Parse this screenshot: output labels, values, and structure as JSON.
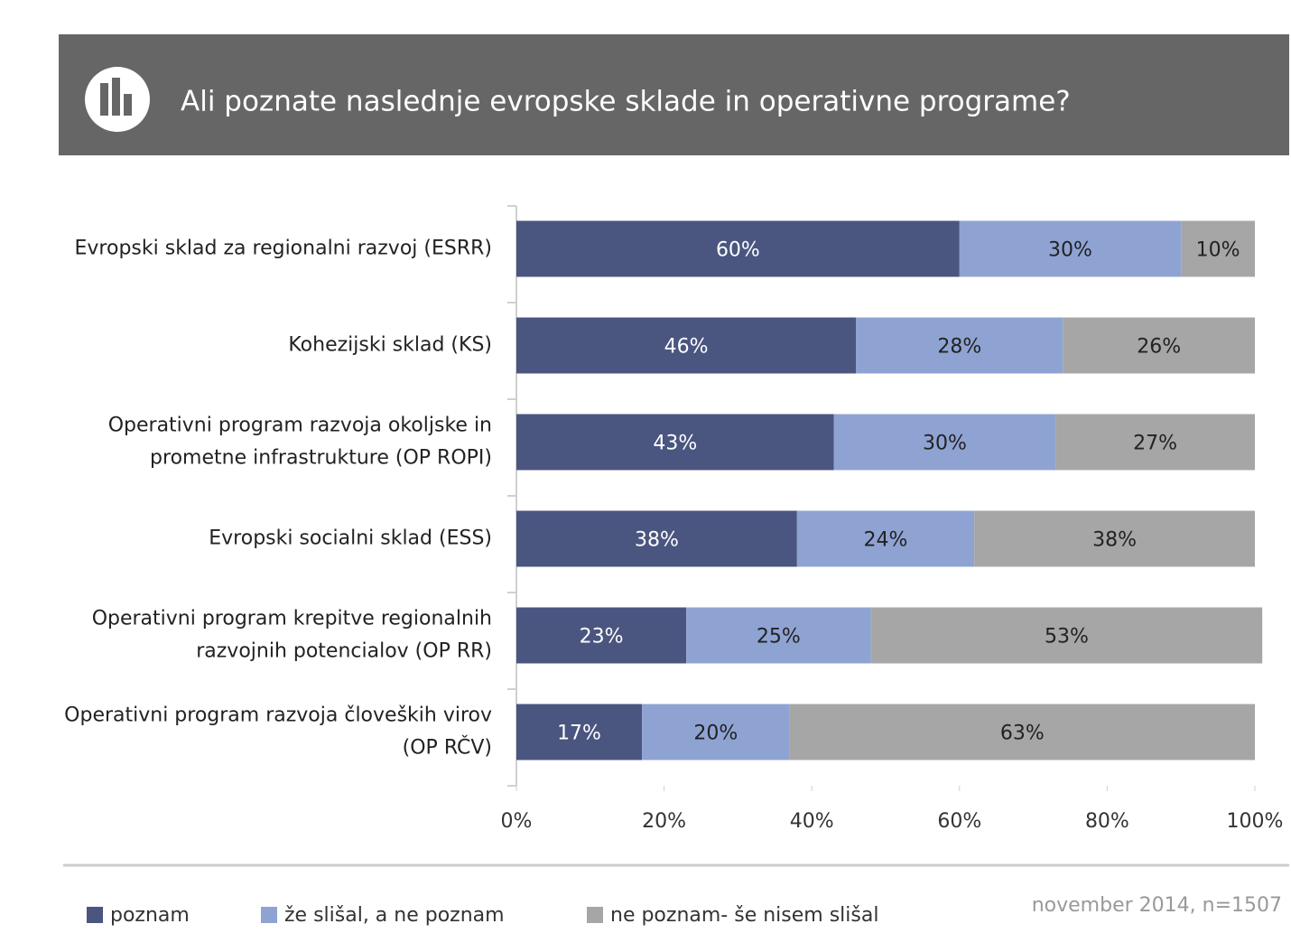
{
  "chart_data": {
    "type": "stacked_barh",
    "title": "Ali poznate naslednje evropske sklade in operativne programe?",
    "categories": [
      "Evropski sklad za regionalni razvoj (ESRR)",
      "Kohezijski sklad (KS)",
      "Operativni program razvoja okoljske in\nprometne infrastrukture (OP ROPI)",
      "Evropski socialni sklad (ESS)",
      "Operativni program krepitve regionalnih\nrazvojnih potencialov (OP RR)",
      "Operativni program razvoja človeških virov\n(OP RČV)"
    ],
    "series": [
      {
        "name": "poznam",
        "color": "#4a5580",
        "values": [
          60,
          46,
          43,
          38,
          23,
          17
        ],
        "value_labels": [
          "60%",
          "46%",
          "43%",
          "38%",
          "23%",
          "17%"
        ]
      },
      {
        "name": "že slišal, a ne poznam",
        "color": "#8fa3d3",
        "values": [
          30,
          28,
          30,
          24,
          25,
          20
        ],
        "value_labels": [
          "30%",
          "28%",
          "30%",
          "24%",
          "25%",
          "20%"
        ]
      },
      {
        "name": "ne poznam- še nisem slišal",
        "color": "#a6a6a6",
        "values": [
          10,
          26,
          27,
          38,
          53,
          63
        ],
        "value_labels": [
          "10%",
          "26%",
          "27%",
          "38%",
          "53%",
          "63%"
        ]
      }
    ],
    "xlim": [
      0,
      100
    ],
    "xticks": [
      {
        "value": 0,
        "label": "0%"
      },
      {
        "value": 20,
        "label": "20%"
      },
      {
        "value": 40,
        "label": "40%"
      },
      {
        "value": 60,
        "label": "60%"
      },
      {
        "value": 80,
        "label": "80%"
      },
      {
        "value": 100,
        "label": "100%"
      }
    ],
    "legend": "bottom",
    "note": "november 2014, n=1507"
  }
}
